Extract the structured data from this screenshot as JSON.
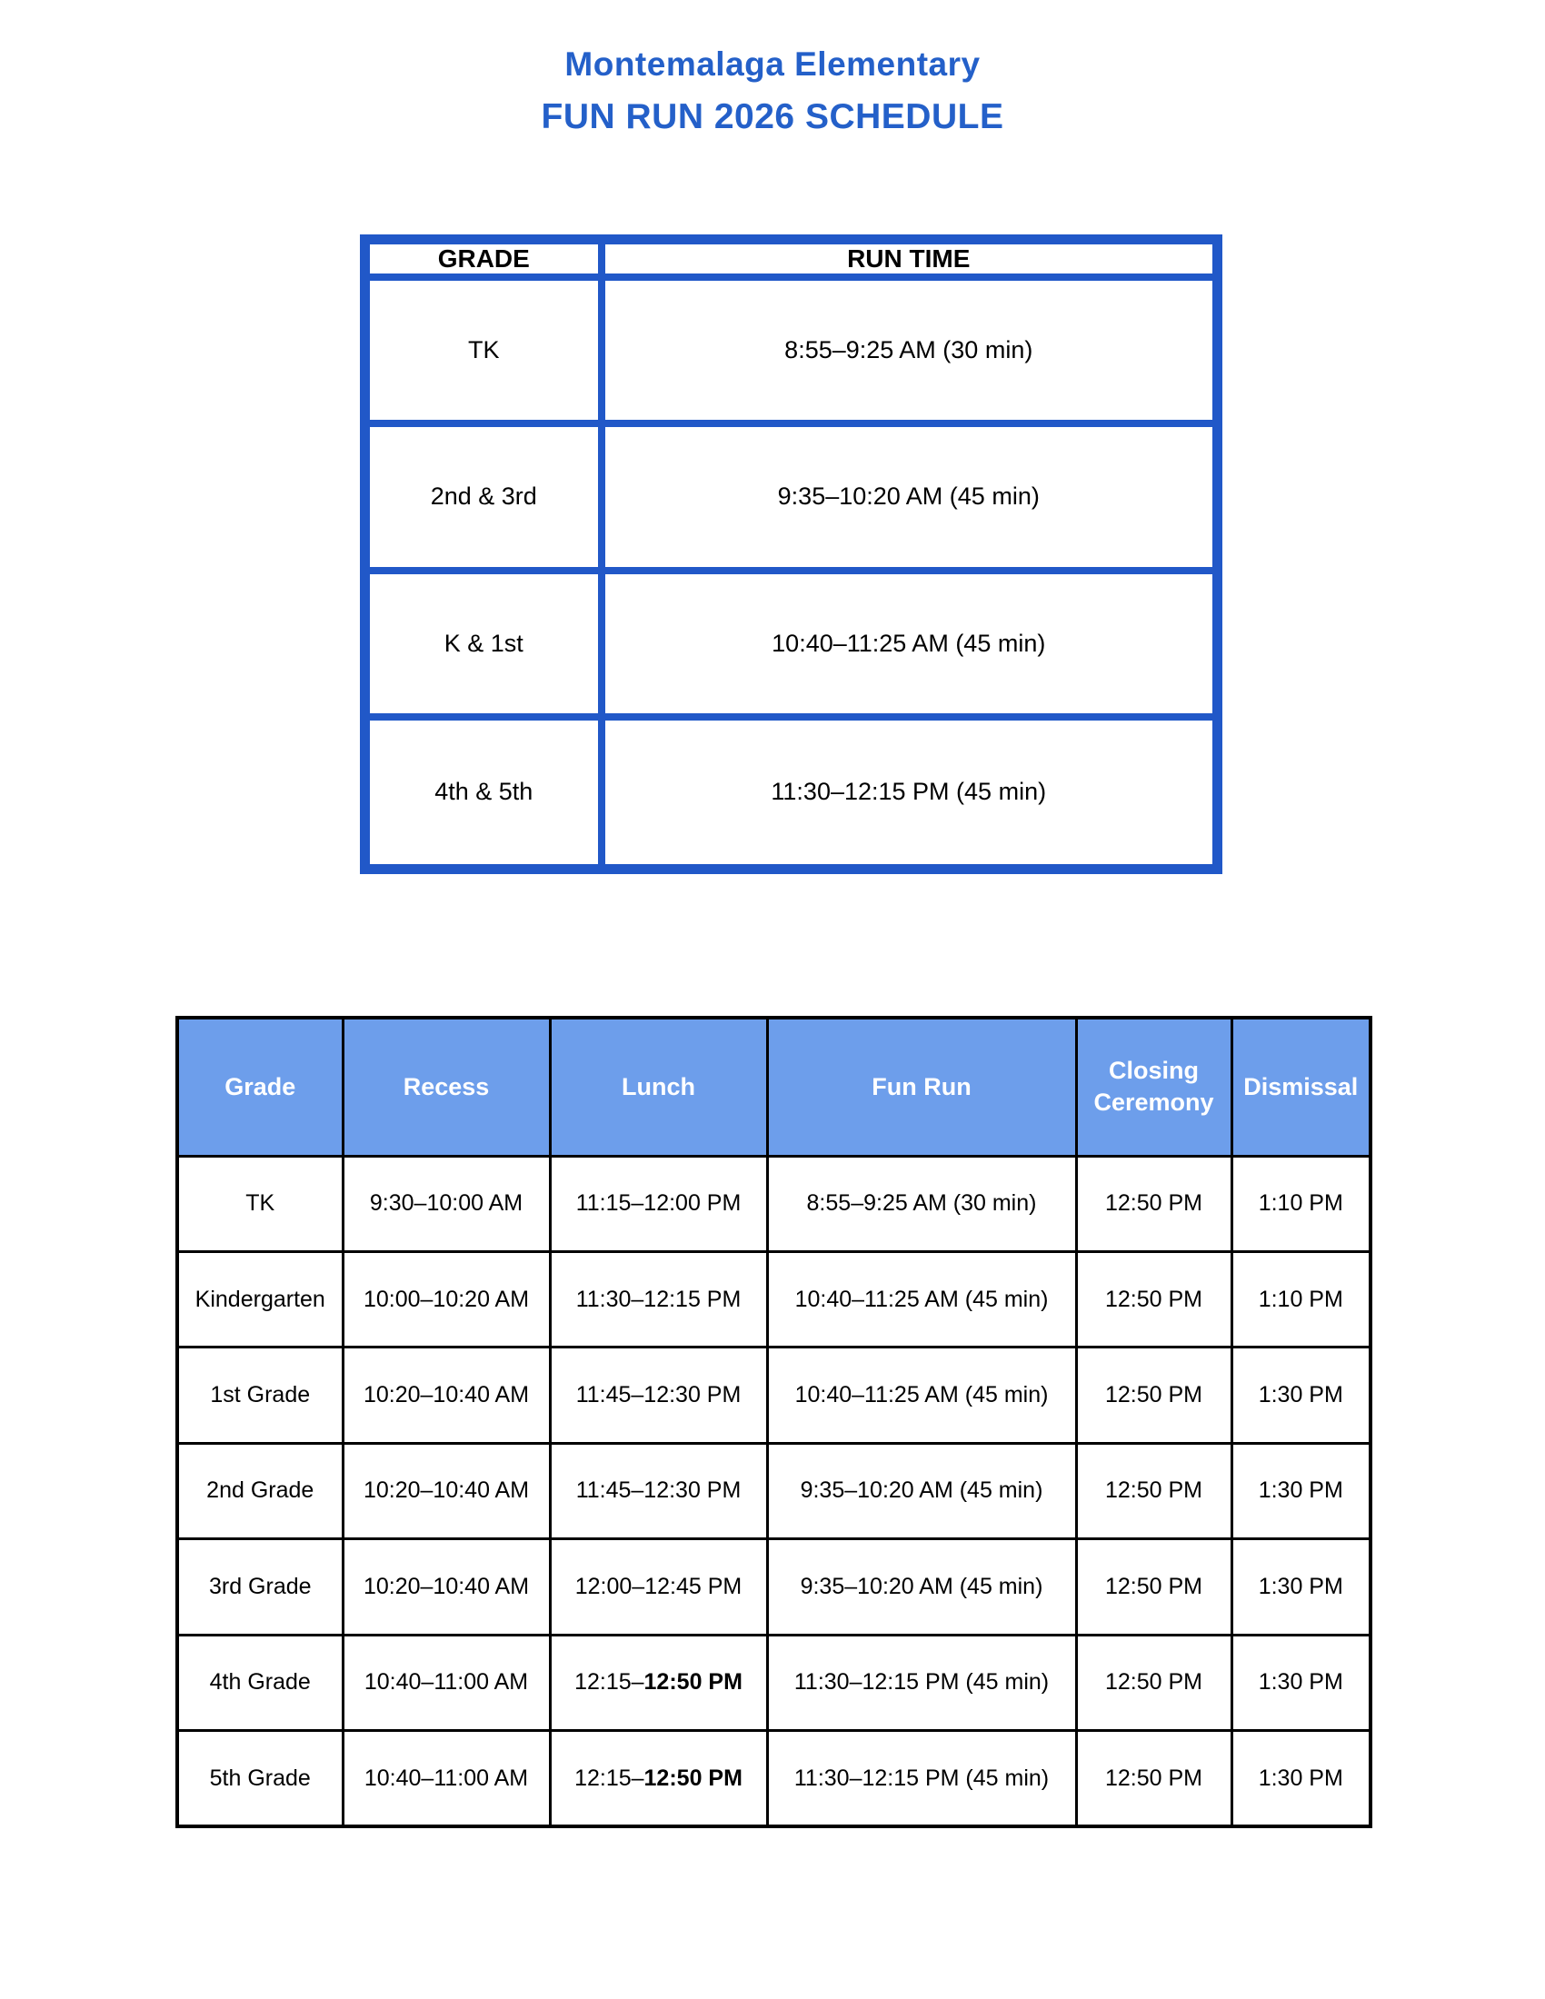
{
  "title": {
    "line1": "Montemalaga Elementary",
    "line2": "FUN RUN 2026 SCHEDULE"
  },
  "colors": {
    "title_text": "#2460c9",
    "run_table_border": "#2158c8",
    "sched_header_bg": "#6d9eeb",
    "sched_header_text": "#ffffff",
    "sched_border": "#000000"
  },
  "run_table": {
    "headers": [
      "GRADE",
      "RUN TIME"
    ],
    "rows": [
      {
        "grade": "TK",
        "run_time": "8:55–9:25 AM (30 min)"
      },
      {
        "grade": "2nd & 3rd",
        "run_time": "9:35–10:20 AM (45 min)"
      },
      {
        "grade": "K & 1st",
        "run_time": "10:40–11:25 AM (45 min)"
      },
      {
        "grade": "4th & 5th",
        "run_time": "11:30–12:15 PM (45 min)"
      }
    ]
  },
  "schedule_table": {
    "headers": [
      "Grade",
      "Recess",
      "Lunch",
      "Fun Run",
      "Closing Ceremony",
      "Dismissal"
    ],
    "rows": [
      {
        "grade": "TK",
        "recess": "9:30–10:00 AM",
        "lunch": "11:15–12:00 PM",
        "lunch_bold": "",
        "fun_run": "8:55–9:25 AM (30 min)",
        "closing": "12:50 PM",
        "dismissal": "1:10 PM"
      },
      {
        "grade": "Kindergarten",
        "recess": "10:00–10:20 AM",
        "lunch": "11:30–12:15 PM",
        "lunch_bold": "",
        "fun_run": "10:40–11:25 AM (45 min)",
        "closing": "12:50 PM",
        "dismissal": "1:10 PM"
      },
      {
        "grade": "1st Grade",
        "recess": "10:20–10:40 AM",
        "lunch": "11:45–12:30 PM",
        "lunch_bold": "",
        "fun_run": "10:40–11:25 AM (45 min)",
        "closing": "12:50 PM",
        "dismissal": "1:30 PM"
      },
      {
        "grade": "2nd Grade",
        "recess": "10:20–10:40 AM",
        "lunch": "11:45–12:30 PM",
        "lunch_bold": "",
        "fun_run": "9:35–10:20 AM (45 min)",
        "closing": "12:50 PM",
        "dismissal": "1:30 PM"
      },
      {
        "grade": "3rd Grade",
        "recess": "10:20–10:40 AM",
        "lunch": "12:00–12:45 PM",
        "lunch_bold": "",
        "fun_run": "9:35–10:20 AM (45 min)",
        "closing": "12:50 PM",
        "dismissal": "1:30 PM"
      },
      {
        "grade": "4th Grade",
        "recess": "10:40–11:00 AM",
        "lunch": "12:15–",
        "lunch_bold": "12:50 PM",
        "fun_run": "11:30–12:15 PM (45 min)",
        "closing": "12:50 PM",
        "dismissal": "1:30 PM"
      },
      {
        "grade": "5th Grade",
        "recess": "10:40–11:00 AM",
        "lunch": "12:15–",
        "lunch_bold": "12:50 PM",
        "fun_run": "11:30–12:15 PM (45 min)",
        "closing": "12:50 PM",
        "dismissal": "1:30 PM"
      }
    ]
  }
}
